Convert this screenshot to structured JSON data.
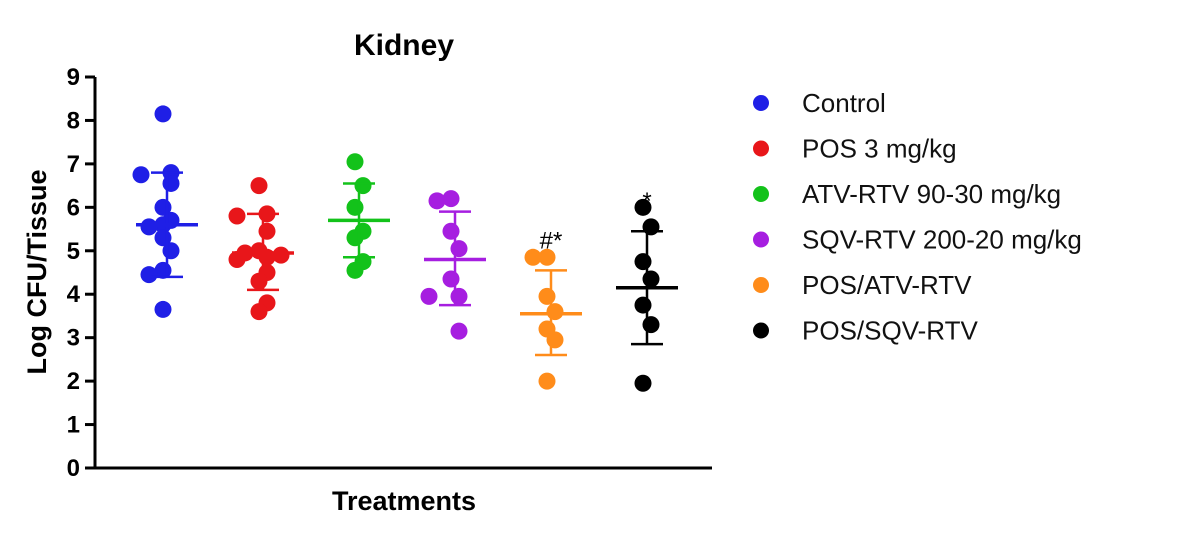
{
  "chart_data": {
    "type": "scatter",
    "title": "Kidney",
    "xlabel": "Treatments",
    "ylabel": "Log CFU/Tissue",
    "ylim": [
      0,
      9
    ],
    "yticks": [
      0,
      1,
      2,
      3,
      4,
      5,
      6,
      7,
      8,
      9
    ],
    "grid": false,
    "legend_position": "right",
    "series": [
      {
        "name": "Control",
        "color": "#1f1fe6",
        "points": [
          8.15,
          6.8,
          6.75,
          6.55,
          6.0,
          5.7,
          5.6,
          5.55,
          5.3,
          5.0,
          4.55,
          4.45,
          3.65
        ],
        "mean": 5.6,
        "sd_low": 4.4,
        "sd_high": 6.8,
        "annotation": ""
      },
      {
        "name": "POS 3 mg/kg",
        "color": "#e8161a",
        "points": [
          6.5,
          5.85,
          5.8,
          5.45,
          5.0,
          4.95,
          4.9,
          4.85,
          4.8,
          4.5,
          4.3,
          3.8,
          3.6
        ],
        "mean": 4.95,
        "sd_low": 4.1,
        "sd_high": 5.85,
        "annotation": ""
      },
      {
        "name": "ATV-RTV 90-30 mg/kg",
        "color": "#13c21a",
        "points": [
          7.05,
          6.5,
          6.0,
          5.45,
          5.3,
          4.75,
          4.55
        ],
        "mean": 5.7,
        "sd_low": 4.85,
        "sd_high": 6.55,
        "annotation": ""
      },
      {
        "name": "SQV-RTV 200-20 mg/kg",
        "color": "#a61ee0",
        "points": [
          6.2,
          6.15,
          5.45,
          5.05,
          4.35,
          3.95,
          3.95,
          3.15
        ],
        "mean": 4.8,
        "sd_low": 3.75,
        "sd_high": 5.9,
        "annotation": ""
      },
      {
        "name": "POS/ATV-RTV",
        "color": "#ff8c1a",
        "points": [
          4.85,
          4.85,
          3.95,
          3.6,
          3.2,
          2.95,
          2.0
        ],
        "mean": 3.55,
        "sd_low": 2.6,
        "sd_high": 4.55,
        "annotation": "#*"
      },
      {
        "name": "POS/SQV-RTV",
        "color": "#000000",
        "points": [
          6.0,
          5.55,
          4.75,
          4.35,
          3.75,
          3.3,
          1.95
        ],
        "mean": 4.15,
        "sd_low": 2.85,
        "sd_high": 5.45,
        "annotation": "*"
      }
    ]
  }
}
